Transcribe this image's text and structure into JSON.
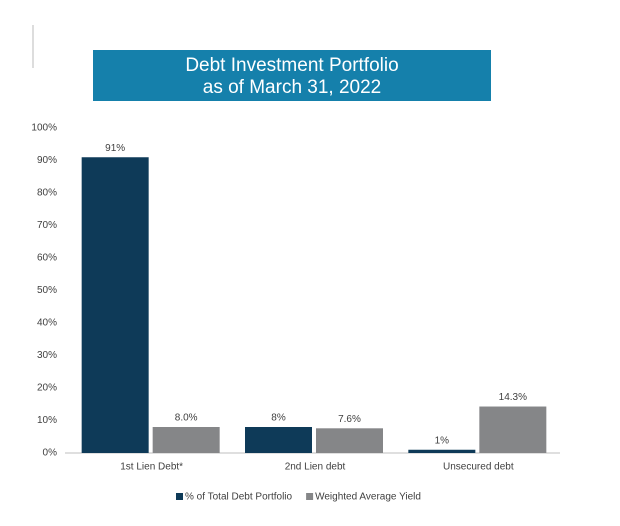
{
  "chart_data": {
    "type": "bar",
    "title": [
      "Debt Investment Portfolio",
      "as of March 31, 2022"
    ],
    "categories": [
      "1st Lien Debt*",
      "2nd Lien debt",
      "Unsecured debt"
    ],
    "series": [
      {
        "name": "% of Total Debt Portfolio",
        "color": "#0e3a58",
        "values": [
          91,
          8,
          1
        ],
        "value_labels": [
          "91%",
          "8%",
          "1%"
        ]
      },
      {
        "name": "Weighted Average Yield",
        "color": "#858688",
        "values": [
          8.0,
          7.6,
          14.3
        ],
        "value_labels": [
          "8.0%",
          "7.6%",
          "14.3%"
        ]
      }
    ],
    "ylim": [
      0,
      100
    ],
    "yticks": [
      {
        "value": 0,
        "label": "0%"
      },
      {
        "value": 10,
        "label": "10%"
      },
      {
        "value": 20,
        "label": "20%"
      },
      {
        "value": 30,
        "label": "30%"
      },
      {
        "value": 40,
        "label": "40%"
      },
      {
        "value": 50,
        "label": "50%"
      },
      {
        "value": 60,
        "label": "60%"
      },
      {
        "value": 70,
        "label": "70%"
      },
      {
        "value": 80,
        "label": "80%"
      },
      {
        "value": 90,
        "label": "90%"
      },
      {
        "value": 100,
        "label": "100%"
      }
    ],
    "grid": false,
    "legend": "bottom"
  }
}
